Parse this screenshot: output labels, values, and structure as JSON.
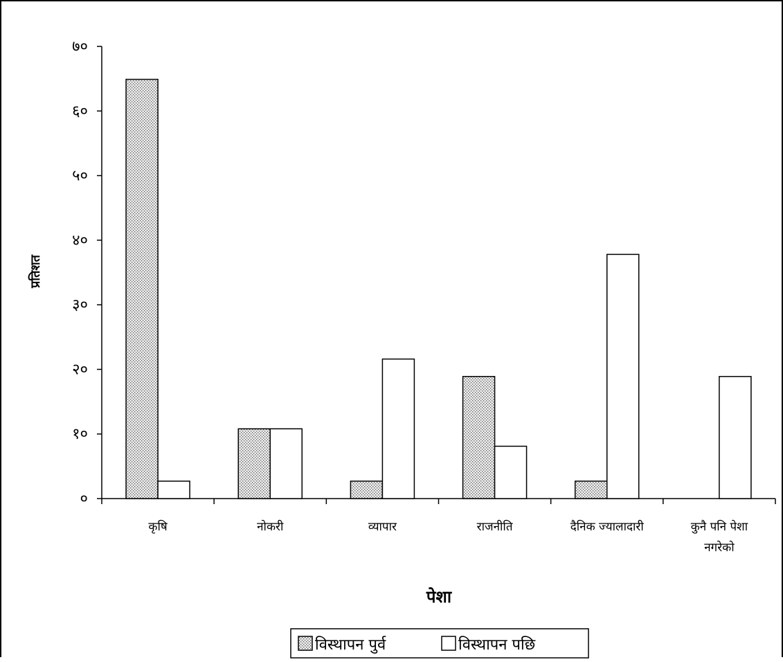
{
  "chart_data": {
    "type": "bar",
    "title": "",
    "xlabel": "पेशा",
    "ylabel": "प्रतिशत",
    "ylim": [
      0,
      70
    ],
    "yticks": [
      {
        "value": 0,
        "label": "०"
      },
      {
        "value": 10,
        "label": "१०"
      },
      {
        "value": 20,
        "label": "२०"
      },
      {
        "value": 30,
        "label": "३०"
      },
      {
        "value": 40,
        "label": "४०"
      },
      {
        "value": 50,
        "label": "५०"
      },
      {
        "value": 60,
        "label": "६०"
      },
      {
        "value": 70,
        "label": "७०"
      }
    ],
    "categories": [
      [
        "कृषि"
      ],
      [
        "नोकरी"
      ],
      [
        "व्यापार"
      ],
      [
        "राजनीति"
      ],
      [
        "दैनिक ज्यालादारी"
      ],
      [
        "कुनै पनि पेशा",
        "नगरेको"
      ]
    ],
    "series": [
      {
        "name": "विस्थापन पुर्व",
        "pattern": "dotted",
        "values": [
          64.9,
          10.8,
          2.7,
          18.9,
          2.7,
          0
        ]
      },
      {
        "name": "विस्थापन पछि",
        "pattern": "white",
        "values": [
          2.7,
          10.8,
          21.6,
          8.1,
          37.8,
          18.9
        ]
      }
    ],
    "grid": false,
    "legend_position": "bottom"
  }
}
